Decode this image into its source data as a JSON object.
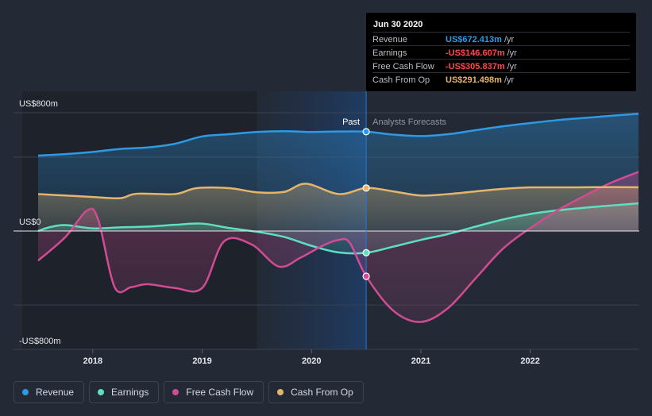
{
  "chart_data": {
    "type": "line",
    "y_axis": {
      "top_label": "US$800m",
      "zero_label": "US$0",
      "bottom_label": "-US$800m",
      "ylim": [
        -800,
        800
      ]
    },
    "x_ticks": [
      "2018",
      "2019",
      "2020",
      "2021",
      "2022"
    ],
    "divider": {
      "past_label": "Past",
      "forecast_label": "Analysts Forecasts",
      "x": 2020.5
    },
    "series": [
      {
        "name": "Revenue",
        "color": "#2e9ae6",
        "points": [
          [
            2017.5,
            510
          ],
          [
            2017.75,
            520
          ],
          [
            2018.0,
            535
          ],
          [
            2018.25,
            555
          ],
          [
            2018.5,
            565
          ],
          [
            2018.75,
            590
          ],
          [
            2019.0,
            640
          ],
          [
            2019.25,
            655
          ],
          [
            2019.5,
            670
          ],
          [
            2019.75,
            675
          ],
          [
            2020.0,
            670
          ],
          [
            2020.25,
            673
          ],
          [
            2020.5,
            672
          ],
          [
            2020.75,
            652
          ],
          [
            2021.0,
            642
          ],
          [
            2021.25,
            655
          ],
          [
            2021.5,
            682
          ],
          [
            2021.75,
            708
          ],
          [
            2022.0,
            730
          ],
          [
            2022.25,
            750
          ],
          [
            2022.5,
            765
          ],
          [
            2022.75,
            780
          ],
          [
            2022.99,
            793
          ]
        ]
      },
      {
        "name": "Earnings",
        "color": "#5ce0c0",
        "points": [
          [
            2017.5,
            0
          ],
          [
            2017.6,
            25
          ],
          [
            2017.75,
            40
          ],
          [
            2018.0,
            18
          ],
          [
            2018.25,
            25
          ],
          [
            2018.5,
            30
          ],
          [
            2018.75,
            42
          ],
          [
            2019.0,
            50
          ],
          [
            2019.25,
            20
          ],
          [
            2019.5,
            -5
          ],
          [
            2019.75,
            -40
          ],
          [
            2020.0,
            -100
          ],
          [
            2020.25,
            -145
          ],
          [
            2020.5,
            -147
          ],
          [
            2020.75,
            -105
          ],
          [
            2021.0,
            -60
          ],
          [
            2021.25,
            -20
          ],
          [
            2021.5,
            30
          ],
          [
            2021.75,
            78
          ],
          [
            2022.0,
            115
          ],
          [
            2022.25,
            140
          ],
          [
            2022.5,
            158
          ],
          [
            2022.75,
            173
          ],
          [
            2022.99,
            187
          ]
        ]
      },
      {
        "name": "Free Cash Flow",
        "color": "#d14c93",
        "points": [
          [
            2017.5,
            -200
          ],
          [
            2017.75,
            -40
          ],
          [
            2017.95,
            140
          ],
          [
            2018.05,
            75
          ],
          [
            2018.2,
            -380
          ],
          [
            2018.35,
            -380
          ],
          [
            2018.5,
            -360
          ],
          [
            2018.75,
            -385
          ],
          [
            2019.0,
            -385
          ],
          [
            2019.2,
            -70
          ],
          [
            2019.45,
            -90
          ],
          [
            2019.7,
            -240
          ],
          [
            2019.9,
            -180
          ],
          [
            2020.1,
            -100
          ],
          [
            2020.25,
            -60
          ],
          [
            2020.35,
            -80
          ],
          [
            2020.5,
            -306
          ],
          [
            2020.75,
            -540
          ],
          [
            2021.0,
            -615
          ],
          [
            2021.25,
            -520
          ],
          [
            2021.5,
            -320
          ],
          [
            2021.75,
            -120
          ],
          [
            2022.0,
            20
          ],
          [
            2022.25,
            140
          ],
          [
            2022.5,
            240
          ],
          [
            2022.75,
            330
          ],
          [
            2022.99,
            400
          ]
        ]
      },
      {
        "name": "Cash From Op",
        "color": "#e5b56c",
        "points": [
          [
            2017.5,
            250
          ],
          [
            2017.75,
            240
          ],
          [
            2018.0,
            230
          ],
          [
            2018.25,
            222
          ],
          [
            2018.4,
            252
          ],
          [
            2018.75,
            250
          ],
          [
            2018.95,
            290
          ],
          [
            2019.25,
            290
          ],
          [
            2019.5,
            262
          ],
          [
            2019.75,
            265
          ],
          [
            2019.95,
            320
          ],
          [
            2020.25,
            250
          ],
          [
            2020.5,
            291
          ],
          [
            2020.75,
            268
          ],
          [
            2021.0,
            240
          ],
          [
            2021.25,
            250
          ],
          [
            2021.5,
            268
          ],
          [
            2021.75,
            285
          ],
          [
            2022.0,
            295
          ],
          [
            2022.25,
            295
          ],
          [
            2022.5,
            296
          ],
          [
            2022.75,
            297
          ],
          [
            2022.99,
            296
          ]
        ]
      }
    ],
    "markers": [
      {
        "series": "Revenue",
        "x": 2020.5,
        "y": 672
      },
      {
        "series": "Cash From Op",
        "x": 2020.5,
        "y": 291
      },
      {
        "series": "Earnings",
        "x": 2020.5,
        "y": -147
      },
      {
        "series": "Free Cash Flow",
        "x": 2020.5,
        "y": -306
      }
    ]
  },
  "tooltip": {
    "date": "Jun 30 2020",
    "rows": [
      {
        "label": "Revenue",
        "value": "US$672.413m",
        "unit": "/yr",
        "color": "#2e9ae6"
      },
      {
        "label": "Earnings",
        "value": "-US$146.607m",
        "unit": "/yr",
        "color": "#ff4a4a"
      },
      {
        "label": "Free Cash Flow",
        "value": "-US$305.837m",
        "unit": "/yr",
        "color": "#ff4a4a"
      },
      {
        "label": "Cash From Op",
        "value": "US$291.498m",
        "unit": "/yr",
        "color": "#e5b56c"
      }
    ]
  },
  "legend": [
    {
      "label": "Revenue",
      "color": "#2e9ae6"
    },
    {
      "label": "Earnings",
      "color": "#5ce0c0"
    },
    {
      "label": "Free Cash Flow",
      "color": "#d14c93"
    },
    {
      "label": "Cash From Op",
      "color": "#e5b56c"
    }
  ]
}
